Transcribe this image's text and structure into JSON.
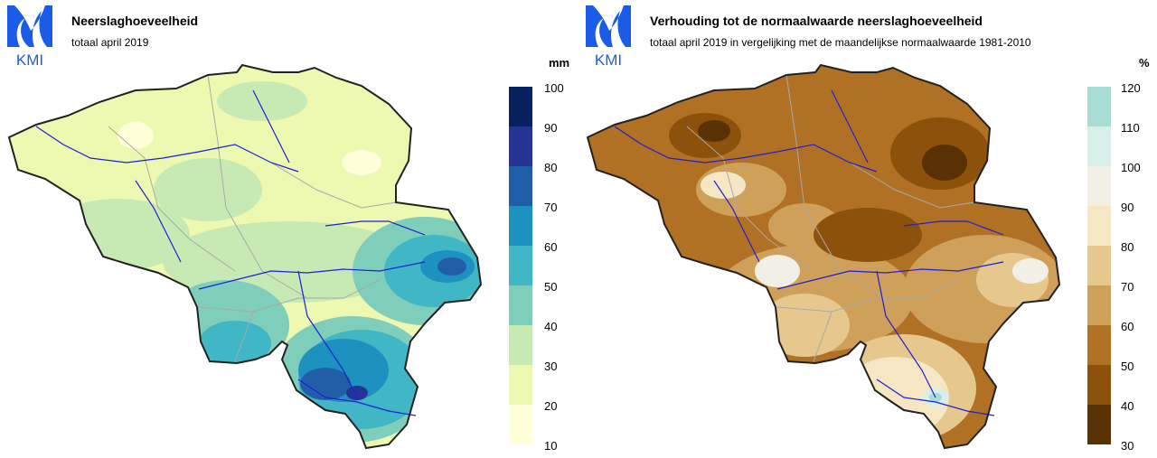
{
  "left_panel": {
    "logo_text": "KMI",
    "title": "Neerslaghoeveelheid",
    "subtitle": "totaal april 2019",
    "unit": "mm",
    "legend_ticks": [
      "100",
      "90",
      "80",
      "70",
      "60",
      "50",
      "40",
      "30",
      "20",
      "10"
    ],
    "legend_colors": [
      "#08205e",
      "#253494",
      "#225ea8",
      "#1d91c0",
      "#41b6c4",
      "#7fcdbb",
      "#c7e9b4",
      "#edf8b1",
      "#ffffd9"
    ]
  },
  "right_panel": {
    "logo_text": "KMI",
    "title": "Verhouding tot de normaalwaarde neerslaghoeveelheid",
    "subtitle": "totaal april 2019 in vergelijking met de maandelijkse normaalwaarde 1981-2010",
    "unit": "%",
    "legend_ticks": [
      "120",
      "110",
      "100",
      "90",
      "80",
      "70",
      "60",
      "50",
      "40",
      "30"
    ],
    "legend_colors": [
      "#a8ddd6",
      "#d6efe9",
      "#f2f0e6",
      "#f5e6c4",
      "#e6c88e",
      "#cfa05a",
      "#b07124",
      "#8c510a",
      "#5a3005"
    ]
  },
  "colors": {
    "logo_blue": "#1a5ce6",
    "border": "#222222",
    "rivers": "#1f1fd6",
    "regions": "#a9a9a9"
  }
}
